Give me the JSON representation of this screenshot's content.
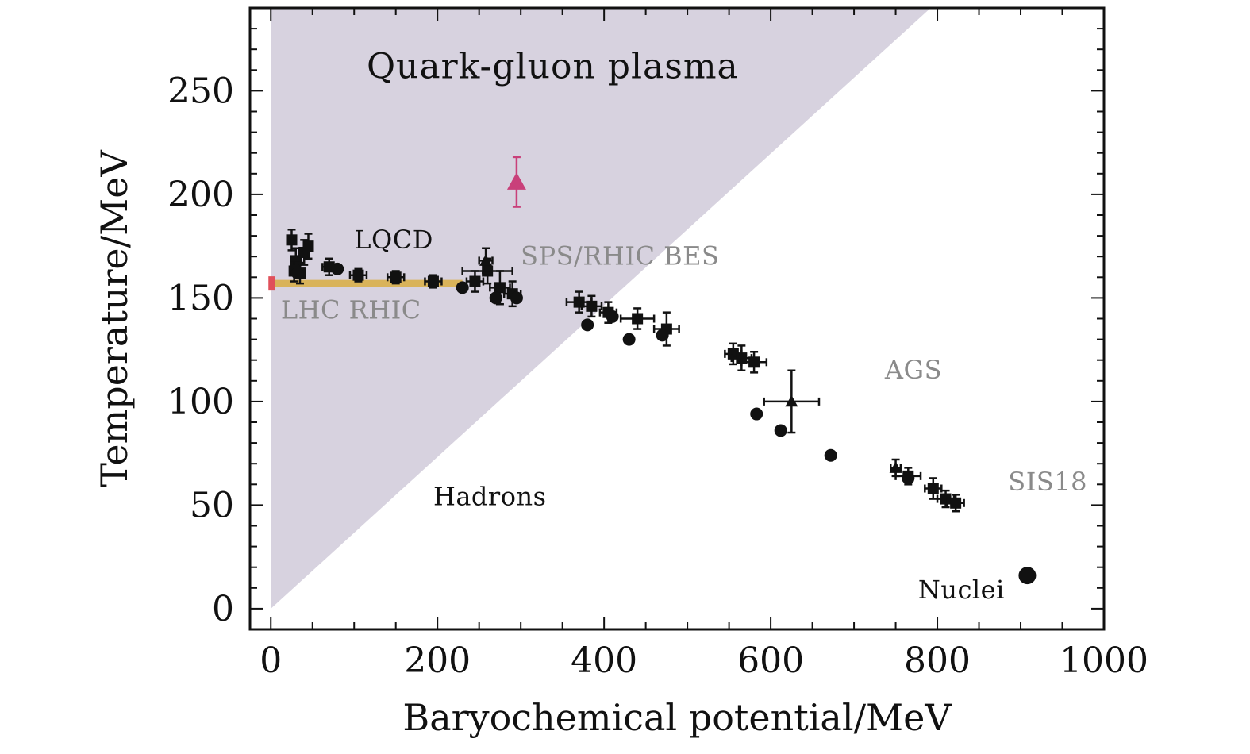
{
  "chart_data": {
    "type": "scatter",
    "xlabel": "Baryochemical potential/MeV",
    "ylabel": "Temperature/MeV",
    "xlim": [
      -25,
      1000
    ],
    "ylim": [
      -10,
      290
    ],
    "xticks": [
      0,
      200,
      400,
      600,
      800,
      1000
    ],
    "yticks": [
      0,
      50,
      100,
      150,
      200,
      250
    ],
    "x_minor_step": 50,
    "y_minor_step": 10,
    "grid": false,
    "colors": {
      "qgp_region": "#d7d2df",
      "points": "#111111",
      "lqcd_band": "#d9b35a",
      "lqcd_endpoint": "#e0505a",
      "highlight_point": "#c9407a",
      "gray_label": "#8a8a8a",
      "dark_label": "#111111"
    },
    "regions": [
      {
        "name": "Quark-gluon plasma",
        "polygon": [
          [
            0,
            0
          ],
          [
            0,
            290
          ],
          [
            792,
            290
          ]
        ]
      }
    ],
    "bands": [
      {
        "label": "LQCD",
        "x": [
          0,
          230
        ],
        "y": 157
      }
    ],
    "annotations": [
      {
        "text": "Quark-gluon plasma",
        "x": 115,
        "y": 256,
        "color": "dark",
        "size": "large"
      },
      {
        "text": "LQCD",
        "x": 100,
        "y": 174,
        "color": "dark",
        "size": "small"
      },
      {
        "text": "SPS/RHIC BES",
        "x": 300,
        "y": 166,
        "color": "gray",
        "size": "small"
      },
      {
        "text": "LHC RHIC",
        "x": 12,
        "y": 140,
        "color": "gray",
        "size": "small"
      },
      {
        "text": "AGS",
        "x": 737,
        "y": 111,
        "color": "gray",
        "size": "small"
      },
      {
        "text": "Hadrons",
        "x": 195,
        "y": 50,
        "color": "dark",
        "size": "small"
      },
      {
        "text": "SIS18",
        "x": 885,
        "y": 57,
        "color": "gray",
        "size": "small"
      },
      {
        "text": "Nuclei",
        "x": 777,
        "y": 5,
        "color": "dark",
        "size": "small"
      }
    ],
    "series": [
      {
        "marker": "square",
        "points": [
          {
            "x": 25,
            "y": 178,
            "xerr": 5,
            "yerr": 5
          },
          {
            "x": 30,
            "y": 168,
            "xerr": 6,
            "yerr": 6
          },
          {
            "x": 35,
            "y": 162,
            "xerr": 6,
            "yerr": 5
          },
          {
            "x": 40,
            "y": 172,
            "xerr": 6,
            "yerr": 6
          },
          {
            "x": 45,
            "y": 175,
            "xerr": 5,
            "yerr": 6
          },
          {
            "x": 28,
            "y": 163,
            "xerr": 5,
            "yerr": 5
          },
          {
            "x": 70,
            "y": 165,
            "xerr": 8,
            "yerr": 4
          },
          {
            "x": 105,
            "y": 161,
            "xerr": 10,
            "yerr": 3
          },
          {
            "x": 150,
            "y": 160,
            "xerr": 10,
            "yerr": 3
          },
          {
            "x": 195,
            "y": 158,
            "xerr": 10,
            "yerr": 3
          },
          {
            "x": 245,
            "y": 158,
            "xerr": 10,
            "yerr": 5
          },
          {
            "x": 260,
            "y": 163,
            "xerr": 30,
            "yerr": 6
          },
          {
            "x": 275,
            "y": 155,
            "xerr": 12,
            "yerr": 8
          },
          {
            "x": 290,
            "y": 152,
            "xerr": 10,
            "yerr": 6
          },
          {
            "x": 370,
            "y": 148,
            "xerr": 15,
            "yerr": 5
          },
          {
            "x": 385,
            "y": 146,
            "xerr": 12,
            "yerr": 5
          },
          {
            "x": 405,
            "y": 143,
            "xerr": 10,
            "yerr": 5
          },
          {
            "x": 440,
            "y": 140,
            "xerr": 20,
            "yerr": 5
          },
          {
            "x": 475,
            "y": 135,
            "xerr": 15,
            "yerr": 8
          },
          {
            "x": 555,
            "y": 123,
            "xerr": 10,
            "yerr": 5
          },
          {
            "x": 565,
            "y": 121,
            "xerr": 12,
            "yerr": 6
          },
          {
            "x": 580,
            "y": 119,
            "xerr": 15,
            "yerr": 5
          },
          {
            "x": 765,
            "y": 64,
            "xerr": 15,
            "yerr": 4
          },
          {
            "x": 795,
            "y": 58,
            "xerr": 10,
            "yerr": 5
          },
          {
            "x": 810,
            "y": 53,
            "xerr": 10,
            "yerr": 4
          },
          {
            "x": 822,
            "y": 51,
            "xerr": 10,
            "yerr": 4
          }
        ]
      },
      {
        "marker": "circle",
        "points": [
          {
            "x": 32,
            "y": 162
          },
          {
            "x": 80,
            "y": 164
          },
          {
            "x": 230,
            "y": 155
          },
          {
            "x": 270,
            "y": 150
          },
          {
            "x": 295,
            "y": 150
          },
          {
            "x": 380,
            "y": 137
          },
          {
            "x": 410,
            "y": 141
          },
          {
            "x": 430,
            "y": 130
          },
          {
            "x": 470,
            "y": 132
          },
          {
            "x": 583,
            "y": 94
          },
          {
            "x": 612,
            "y": 86
          },
          {
            "x": 672,
            "y": 74
          },
          {
            "x": 765,
            "y": 63
          }
        ]
      },
      {
        "marker": "triangle",
        "points": [
          {
            "x": 258,
            "y": 168,
            "xerr": 8,
            "yerr": 6
          },
          {
            "x": 625,
            "y": 100,
            "xerr": 33,
            "yerr": 15
          },
          {
            "x": 750,
            "y": 68,
            "xerr": 6,
            "yerr": 4
          }
        ]
      },
      {
        "marker": "triangle",
        "highlight": true,
        "points": [
          {
            "x": 295,
            "y": 206,
            "xerr": 0,
            "yerr": 12
          }
        ]
      },
      {
        "marker": "circle-large",
        "points": [
          {
            "x": 908,
            "y": 16
          }
        ]
      }
    ]
  }
}
